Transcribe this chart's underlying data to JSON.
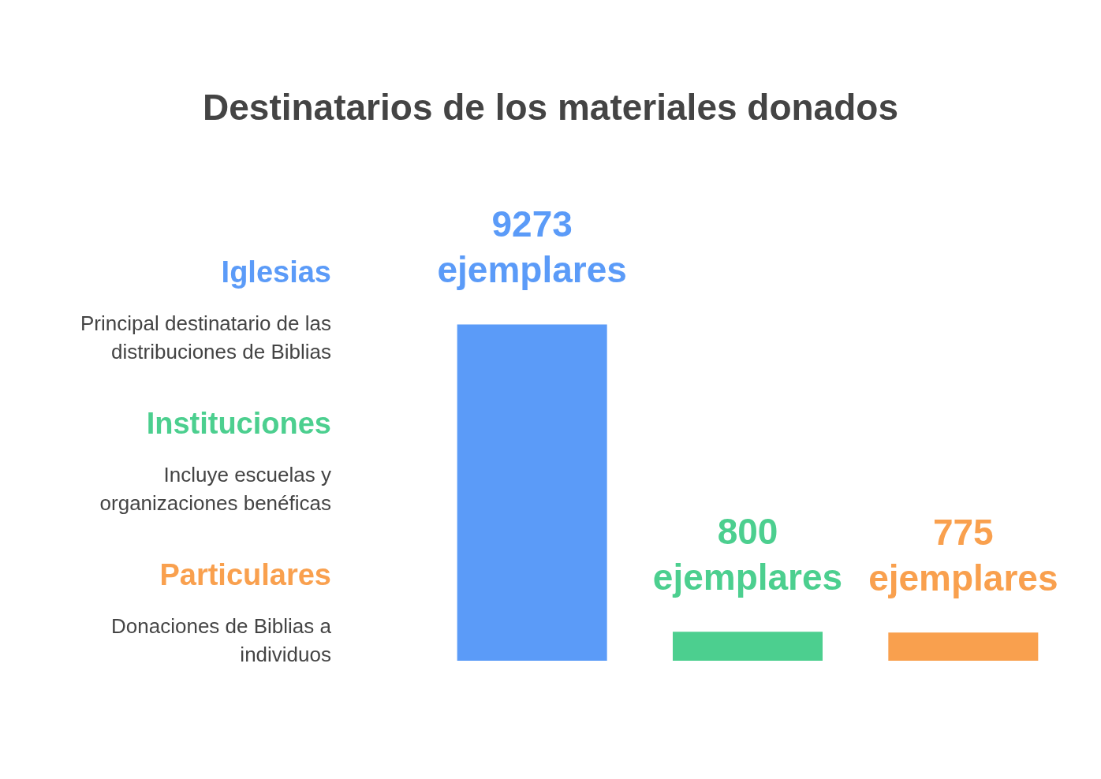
{
  "chart_data": {
    "type": "bar",
    "title": "Destinatarios de los materiales donados",
    "categories": [
      null,
      null,
      null
    ],
    "values": [
      9273,
      800,
      775
    ],
    "colors": [
      "#5b9bf8",
      "#4ccf8f",
      "#f9a04e"
    ],
    "value_labels": [
      "9273 ejemplares",
      "800 ejemplares",
      "775 ejemplares"
    ],
    "annotations": [
      "Iglesias",
      "Principal destinatario de las distribuciones de Biblias",
      "Instituciones",
      "Incluye escuelas y organizaciones benéficas",
      "Particulares",
      "Donaciones de Biblias a individuos"
    ]
  }
}
